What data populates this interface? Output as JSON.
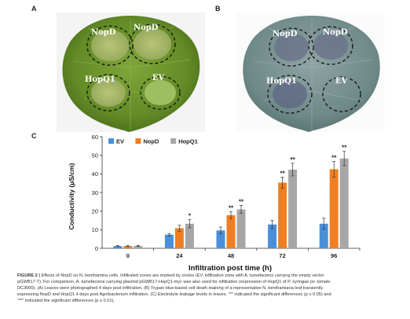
{
  "panels": {
    "a": "A",
    "b": "B",
    "c": "C"
  },
  "photo_a": {
    "labels": {
      "nopd_left": "NopD",
      "nopd_right": "NopD",
      "hopq1": "HopQ1",
      "ev": "EV"
    }
  },
  "photo_b": {
    "labels": {
      "nopd_left": "NopD",
      "nopd_right": "NopD",
      "hopq1": "HopQ1",
      "ev": "EV"
    }
  },
  "chart_data": {
    "type": "bar",
    "title": "",
    "xlabel": "Infiltration post time (h)",
    "ylabel": "Conductivity (μS/cm)",
    "ylim": [
      0,
      60
    ],
    "yticks": [
      0,
      10,
      20,
      30,
      40,
      50,
      60
    ],
    "categories": [
      "0",
      "24",
      "48",
      "72",
      "96"
    ],
    "legend_position": "top-left",
    "grid": false,
    "series": [
      {
        "name": "EV",
        "color": "#4a90d9",
        "values": [
          1.2,
          7.3,
          9.6,
          12.8,
          13.2
        ],
        "errors": [
          0.3,
          0.6,
          1.8,
          2.2,
          3.0
        ],
        "sig": [
          "",
          "",
          "",
          "",
          ""
        ]
      },
      {
        "name": "NopD",
        "color": "#f07f21",
        "values": [
          1.2,
          10.8,
          17.8,
          35.3,
          42.5
        ],
        "errors": [
          0.3,
          1.6,
          1.8,
          3.0,
          4.2
        ],
        "sig": [
          "",
          "",
          "**",
          "**",
          "**"
        ]
      },
      {
        "name": "HopQ1",
        "color": "#a6a6a6",
        "values": [
          1.3,
          13.2,
          20.9,
          42.3,
          48.3
        ],
        "errors": [
          0.3,
          2.2,
          2.2,
          3.4,
          3.8
        ],
        "sig": [
          "",
          "*",
          "**",
          "**",
          "**"
        ]
      }
    ]
  },
  "caption": {
    "label": "FIGURE 2 |",
    "line1": " Effects of NopD on N. benthamina cells. Infiltrated zones are marked by circles (EV, infiltration zone with A. tumefaciens carrying the empty vector",
    "line2": "pGWB17-T). For comparison, A. tumefaciens carrying plasmid pGWB17-HopQ1-myc was also used for infiltration (expression of HopQ1 of P. syringae pv. tomato",
    "line3": "DC3000). (A) Leaves were photographed 4 days post infiltration. (B) Trypan blue-based cell death staining of a representative N. benthamiana leaf transiently",
    "line4": "expressing NopD and HopQ1 4 days post Agrobacterium infiltration. (C) Electrolyte leakage levels in leaves. \"*\" indicated the significant differences (p ≤ 0.05) and",
    "line5": "\"**\" indicated the significant differences (p ≤ 0.01)."
  }
}
